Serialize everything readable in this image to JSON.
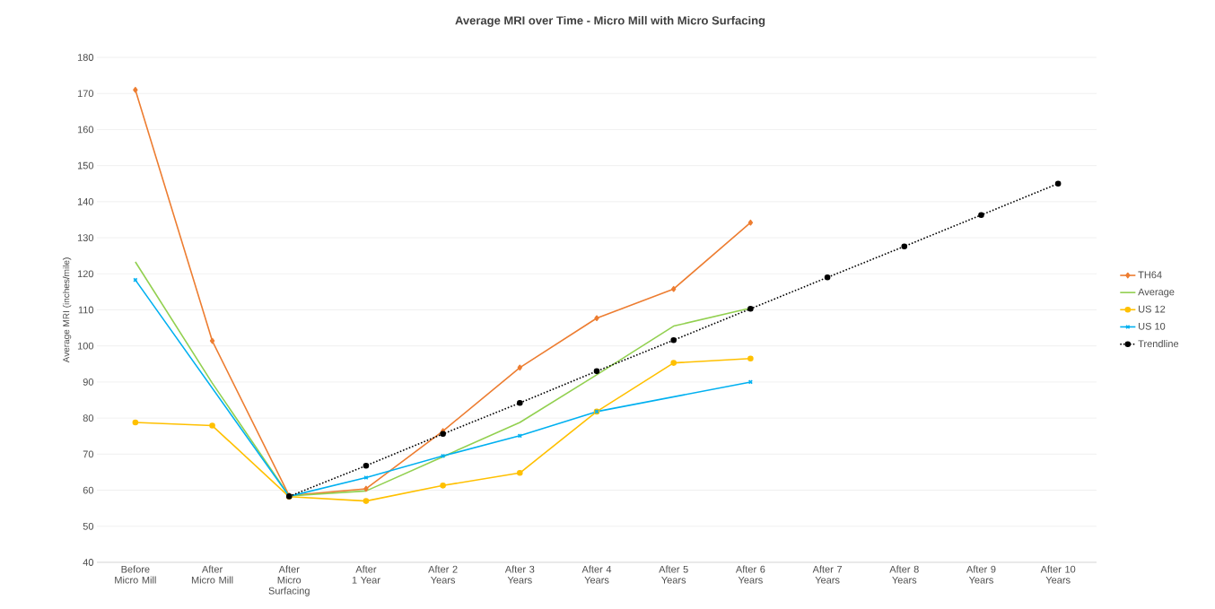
{
  "chart_data": {
    "type": "line",
    "title": "Average MRI over Time - Micro Mill with Micro Surfacing",
    "ylabel": "Average MRI (inches/mile)",
    "categories": [
      "Before Micro Mill",
      "After Micro Mill",
      "After Micro Surfacing",
      "After 1 Year",
      "After 2 Years",
      "After 3 Years",
      "After 4 Years",
      "After 5 Years",
      "After 6 Years",
      "After 7 Years",
      "After 8 Years",
      "After 9 Years",
      "After 10 Years"
    ],
    "series": [
      {
        "name": "TH64",
        "color": "#ed7d31",
        "marker": "diamond",
        "values": [
          171,
          101.4,
          58.5,
          60.4,
          76.4,
          94,
          107.7,
          115.8,
          134.2,
          null,
          null,
          null,
          null
        ]
      },
      {
        "name": "Average",
        "color": "#92d050",
        "marker": "none",
        "values": [
          123.3,
          89.7,
          58.4,
          59.8,
          69.3,
          78.8,
          92,
          105.5,
          110.5,
          null,
          null,
          null,
          null
        ]
      },
      {
        "name": "US 12",
        "color": "#ffc000",
        "marker": "circle",
        "values": [
          78.8,
          77.9,
          58.2,
          57,
          61.3,
          64.8,
          81.8,
          95.3,
          96.5,
          null,
          null,
          null,
          null
        ]
      },
      {
        "name": "US 10",
        "color": "#00b0f0",
        "marker": "cross",
        "values": [
          118.3,
          null,
          58.3,
          63.5,
          69.5,
          75.1,
          81.8,
          null,
          90,
          null,
          null,
          null,
          null
        ]
      },
      {
        "name": "Trendline",
        "color": "#000000",
        "marker": "circle",
        "line_style": "dotted",
        "values": [
          null,
          null,
          58.3,
          66.8,
          75.6,
          84.2,
          93,
          101.6,
          110.3,
          119,
          127.6,
          136.3,
          145
        ]
      }
    ],
    "ylim": [
      40,
      180
    ],
    "yticks": [
      40,
      50,
      60,
      70,
      80,
      90,
      100,
      110,
      120,
      130,
      140,
      150,
      160,
      170,
      180
    ],
    "grid": "y",
    "legend": "right"
  }
}
